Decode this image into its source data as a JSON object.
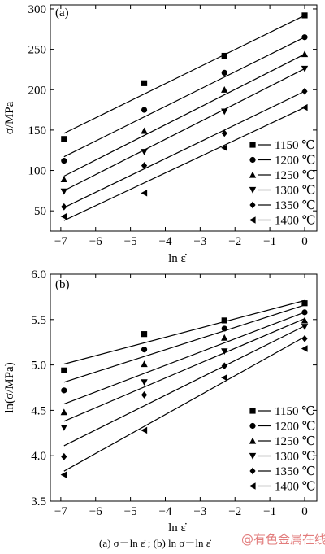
{
  "chart_data": [
    {
      "panel": "(a)",
      "type": "scatter",
      "xlabel": "ln ε̇",
      "ylabel": "σ/MPa",
      "xlim": [
        -7.3,
        0.35
      ],
      "ylim": [
        25,
        305
      ],
      "xticks": [
        -7,
        -6,
        -5,
        -4,
        -3,
        -2,
        -1,
        0
      ],
      "yticks": [
        50,
        100,
        150,
        200,
        250,
        300
      ],
      "x": [
        -6.908,
        -4.605,
        -2.303,
        0
      ],
      "legend_position": "bottom-right",
      "series": [
        {
          "name": "1150 ℃",
          "marker": "square",
          "values": [
            139,
            208,
            242,
            292
          ],
          "fit": [
            146,
            292
          ]
        },
        {
          "name": "1200 ℃",
          "marker": "circle",
          "values": [
            112,
            175,
            221,
            265
          ],
          "fit": [
            117,
            265
          ]
        },
        {
          "name": "1250 ℃",
          "marker": "triangle-up",
          "values": [
            89,
            149,
            200,
            244
          ],
          "fit": [
            93,
            244
          ]
        },
        {
          "name": "1300 ℃",
          "marker": "triangle-down",
          "values": [
            74,
            123,
            173,
            226
          ],
          "fit": [
            75,
            226
          ]
        },
        {
          "name": "1350 ℃",
          "marker": "diamond",
          "values": [
            55,
            106,
            146,
            198
          ],
          "fit": [
            54,
            198
          ]
        },
        {
          "name": "1400 ℃",
          "marker": "triangle-left",
          "values": [
            43,
            72,
            128,
            178
          ],
          "fit": [
            38,
            178
          ]
        }
      ]
    },
    {
      "panel": "(b)",
      "type": "scatter",
      "xlabel": "ln ε̇",
      "ylabel": "ln(σ/MPa)",
      "xlim": [
        -7.3,
        0.35
      ],
      "ylim": [
        3.5,
        6.0
      ],
      "xticks": [
        -7,
        -6,
        -5,
        -4,
        -3,
        -2,
        -1,
        0
      ],
      "yticks": [
        3.5,
        4.0,
        4.5,
        5.0,
        5.5,
        6.0
      ],
      "ytick_labels": [
        "3.5",
        "4.0",
        "4.5",
        "5.0",
        "5.5",
        "6.0"
      ],
      "x": [
        -6.908,
        -4.605,
        -2.303,
        0
      ],
      "legend_position": "bottom-right",
      "series": [
        {
          "name": "1150 ℃",
          "marker": "square",
          "values": [
            4.94,
            5.34,
            5.49,
            5.68
          ],
          "fit": [
            5.01,
            5.71
          ]
        },
        {
          "name": "1200 ℃",
          "marker": "circle",
          "values": [
            4.72,
            5.17,
            5.4,
            5.58
          ],
          "fit": [
            4.81,
            5.66
          ]
        },
        {
          "name": "1250 ℃",
          "marker": "triangle-up",
          "values": [
            4.48,
            5.01,
            5.3,
            5.49
          ],
          "fit": [
            4.57,
            5.58
          ]
        },
        {
          "name": "1300 ℃",
          "marker": "triangle-down",
          "values": [
            4.31,
            4.81,
            5.15,
            5.42
          ],
          "fit": [
            4.38,
            5.51
          ]
        },
        {
          "name": "1350 ℃",
          "marker": "diamond",
          "values": [
            3.99,
            4.67,
            4.99,
            5.29
          ],
          "fit": [
            4.11,
            5.43
          ]
        },
        {
          "name": "1400 ℃",
          "marker": "triangle-left",
          "values": [
            3.79,
            4.28,
            4.86,
            5.18
          ],
          "fit": [
            3.83,
            5.31
          ]
        }
      ]
    }
  ],
  "caption": "(a) σ－ln ε̇ ; (b)  ln σ－ln ε̇",
  "watermark": "@有色金属在线"
}
